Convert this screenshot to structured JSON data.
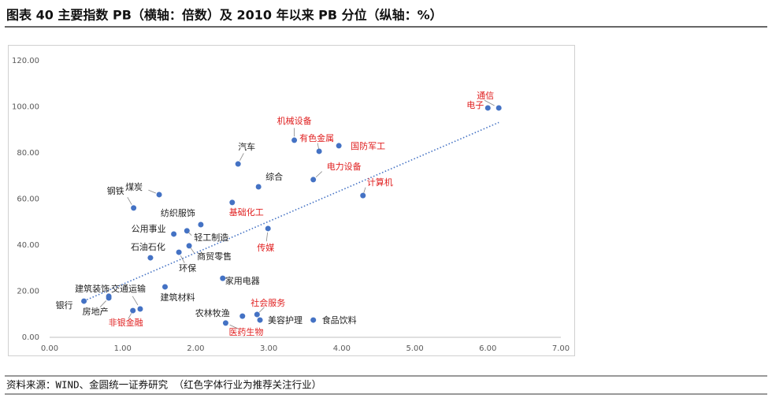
{
  "chart_data": {
    "type": "scatter",
    "title": "图表 40  主要指数 PB（横轴：倍数）及 2010 年以来 PB 分位（纵轴：%）",
    "source": "资料来源：WIND、金圆统一证券研究 （红色字体行业为推荐关注行业）",
    "labels": [
      "通信",
      "电子",
      "机械设备",
      "有色金属",
      "国防军工",
      "汽车",
      "电力设备",
      "综合",
      "计算机",
      "煤炭",
      "钢铁",
      "基础化工",
      "纺织服饰",
      "公用事业",
      "轻工制造",
      "传媒",
      "商贸零售",
      "石油石化",
      "环保",
      "家用电器",
      "建筑材料",
      "建筑装饰",
      "交通运输",
      "房地产",
      "银行",
      "非银金融",
      "社会服务",
      "农林牧渔",
      "美容护理",
      "医药生物",
      "食品饮料"
    ],
    "x": [
      6.15,
      6.0,
      3.35,
      3.69,
      3.96,
      2.58,
      3.61,
      2.86,
      4.29,
      1.5,
      1.15,
      2.5,
      2.07,
      1.7,
      1.88,
      2.99,
      1.91,
      1.38,
      1.77,
      2.37,
      1.58,
      0.81,
      1.24,
      0.81,
      0.47,
      1.14,
      2.84,
      2.64,
      2.88,
      2.41,
      3.61
    ],
    "values": [
      99.5,
      99.5,
      85.5,
      80.7,
      83.1,
      75.2,
      68.4,
      65.3,
      61.5,
      61.9,
      56.1,
      58.5,
      48.9,
      44.8,
      46.2,
      47.2,
      39.7,
      34.5,
      36.9,
      25.6,
      21.9,
      17.8,
      12.3,
      17.1,
      15.7,
      11.6,
      9.9,
      9.2,
      7.5,
      6.2,
      7.5
    ],
    "label_colors": [
      "#e02020",
      "#e02020",
      "#e02020",
      "#e02020",
      "#e02020",
      "#222222",
      "#e02020",
      "#222222",
      "#e02020",
      "#222222",
      "#222222",
      "#e02020",
      "#222222",
      "#222222",
      "#222222",
      "#e02020",
      "#222222",
      "#222222",
      "#222222",
      "#222222",
      "#222222",
      "#222222",
      "#222222",
      "#222222",
      "#222222",
      "#e02020",
      "#e02020",
      "#222222",
      "#222222",
      "#e02020",
      "#222222"
    ],
    "color": "#4472c4",
    "trendline": true,
    "xlim": [
      0,
      7
    ],
    "xticks": [
      {
        "value": 0,
        "label": "0.00"
      },
      {
        "value": 1,
        "label": "1.00"
      },
      {
        "value": 2,
        "label": "2.00"
      },
      {
        "value": 3,
        "label": "3.00"
      },
      {
        "value": 4,
        "label": "4.00"
      },
      {
        "value": 5,
        "label": "5.00"
      },
      {
        "value": 6,
        "label": "6.00"
      },
      {
        "value": 7,
        "label": "7.00"
      }
    ],
    "ylim": [
      0,
      120
    ],
    "yticks": [
      {
        "value": 0,
        "label": "0.00"
      },
      {
        "value": 20,
        "label": "20.00"
      },
      {
        "value": 40,
        "label": "40.00"
      },
      {
        "value": 60,
        "label": "60.00"
      },
      {
        "value": 80,
        "label": "80.00"
      },
      {
        "value": 100,
        "label": "100.00"
      },
      {
        "value": 120,
        "label": "120.00"
      }
    ]
  }
}
